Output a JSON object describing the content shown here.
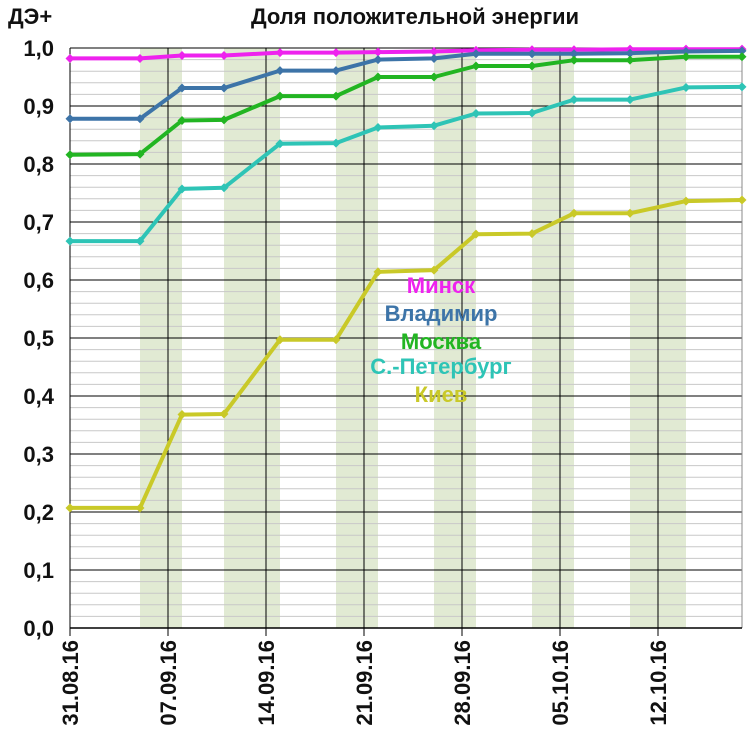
{
  "chart_data": {
    "type": "line",
    "title": "Доля положительной энергии",
    "ylabel": "ДЭ+",
    "xlabel": "",
    "ylim": [
      0,
      1
    ],
    "yticks": [
      "0,0",
      "0,1",
      "0,2",
      "0,3",
      "0,4",
      "0,5",
      "0,6",
      "0,7",
      "0,8",
      "0,9",
      "1,0"
    ],
    "xticks": [
      {
        "label": "31.08.16",
        "day": 0
      },
      {
        "label": "07.09.16",
        "day": 7
      },
      {
        "label": "14.09.16",
        "day": 14
      },
      {
        "label": "21.09.16",
        "day": 21
      },
      {
        "label": "28.09.16",
        "day": 28
      },
      {
        "label": "05.10.16",
        "day": 35
      },
      {
        "label": "12.10.16",
        "day": 42
      }
    ],
    "xlim_days": [
      0,
      48
    ],
    "shaded_bands_days": [
      [
        5,
        8
      ],
      [
        11,
        15
      ],
      [
        19,
        22
      ],
      [
        26,
        29
      ],
      [
        33,
        36
      ],
      [
        40,
        44
      ]
    ],
    "grid": true,
    "x": [
      0,
      5,
      8,
      11,
      15,
      19,
      22,
      26,
      29,
      33,
      36,
      40,
      44,
      48
    ],
    "series": [
      {
        "name": "Минск",
        "color": "#ee22ee",
        "values": [
          0.982,
          0.982,
          0.987,
          0.987,
          0.992,
          0.992,
          0.993,
          0.994,
          0.996,
          0.997,
          0.997,
          0.998,
          0.998,
          0.998
        ]
      },
      {
        "name": "Владимир",
        "color": "#3d74a8",
        "values": [
          0.878,
          0.878,
          0.931,
          0.931,
          0.961,
          0.961,
          0.98,
          0.982,
          0.99,
          0.99,
          0.99,
          0.991,
          0.994,
          0.995
        ]
      },
      {
        "name": "Москва",
        "color": "#22b522",
        "values": [
          0.816,
          0.817,
          0.875,
          0.876,
          0.917,
          0.917,
          0.95,
          0.95,
          0.969,
          0.969,
          0.979,
          0.979,
          0.985,
          0.985
        ]
      },
      {
        "name": "С.-Петербург",
        "color": "#2ec4b6",
        "values": [
          0.667,
          0.667,
          0.757,
          0.759,
          0.835,
          0.836,
          0.863,
          0.866,
          0.887,
          0.888,
          0.911,
          0.911,
          0.932,
          0.933
        ]
      },
      {
        "name": "Киев",
        "color": "#c9c928",
        "values": [
          0.207,
          0.207,
          0.368,
          0.369,
          0.497,
          0.497,
          0.614,
          0.617,
          0.679,
          0.68,
          0.715,
          0.715,
          0.736,
          0.738
        ]
      }
    ],
    "legend_placement": "center"
  }
}
